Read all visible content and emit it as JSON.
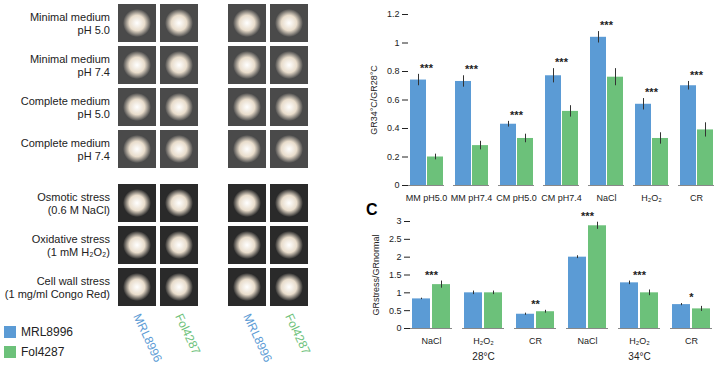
{
  "image_panel": {
    "row_groups": [
      [
        [
          "Minimal medium",
          "pH 5.0"
        ],
        [
          "Minimal medium",
          "pH 7.4"
        ],
        [
          "Complete medium",
          "pH 5.0"
        ],
        [
          "Complete medium",
          "pH 7.4"
        ]
      ],
      [
        [
          "Osmotic stress",
          "(0.6 M NaCl)"
        ],
        [
          "Oxidative stress",
          "(1 mM H₂O₂)"
        ],
        [
          "Cell wall stress",
          "(1 mg/ml Congo Red)"
        ]
      ]
    ],
    "columns": [
      "MRL8996",
      "Fol4287",
      "MRL8996",
      "Fol4287"
    ]
  },
  "chart_data": [
    {
      "type": "bar",
      "y_label": "GR34°C/GR28°C",
      "categories": [
        "MM pH5.0",
        "MM pH7.4",
        "CM pH5.0",
        "CM pH7.4",
        "NaCl",
        "H₂O₂",
        "CR"
      ],
      "series": [
        {
          "name": "MRL8996",
          "color": "#5b9bd5",
          "values": [
            0.74,
            0.73,
            0.43,
            0.77,
            1.04,
            0.57,
            0.7
          ],
          "errors": [
            0.04,
            0.04,
            0.02,
            0.05,
            0.04,
            0.04,
            0.03
          ]
        },
        {
          "name": "Fol4287",
          "color": "#6cc17a",
          "values": [
            0.2,
            0.28,
            0.33,
            0.52,
            0.76,
            0.33,
            0.39
          ],
          "errors": [
            0.02,
            0.03,
            0.03,
            0.04,
            0.06,
            0.04,
            0.05
          ]
        }
      ],
      "annotations": [
        "***",
        "***",
        "***",
        "***",
        "***",
        "***",
        "***"
      ],
      "ylim": [
        0,
        1.2
      ],
      "yticks": [
        0,
        0.2,
        0.4,
        0.6,
        0.8,
        1,
        1.2
      ],
      "legend": "bottom-left"
    },
    {
      "type": "bar",
      "title": "C",
      "y_label": "GRstress/GRnormal",
      "categories": [
        "NaCl",
        "H₂O₂",
        "CR",
        "NaCl",
        "H₂O₂",
        "CR"
      ],
      "groups": [
        "28°C",
        "28°C",
        "28°C",
        "34°C",
        "34°C",
        "34°C"
      ],
      "series": [
        {
          "name": "MRL8996",
          "color": "#5b9bd5",
          "values": [
            0.83,
            1.0,
            0.4,
            2.0,
            1.28,
            0.67
          ],
          "errors": [
            0.02,
            0.05,
            0.03,
            0.04,
            0.05,
            0.03
          ]
        },
        {
          "name": "Fol4287",
          "color": "#6cc17a",
          "values": [
            1.23,
            1.0,
            0.47,
            2.88,
            1.0,
            0.55
          ],
          "errors": [
            0.1,
            0.05,
            0.04,
            0.1,
            0.08,
            0.07
          ]
        }
      ],
      "annotations": [
        "***",
        null,
        "**",
        "***",
        "***",
        "*"
      ],
      "ylim": [
        0,
        3
      ],
      "yticks": [
        0,
        0.5,
        1,
        1.5,
        2,
        2.5,
        3
      ]
    }
  ]
}
